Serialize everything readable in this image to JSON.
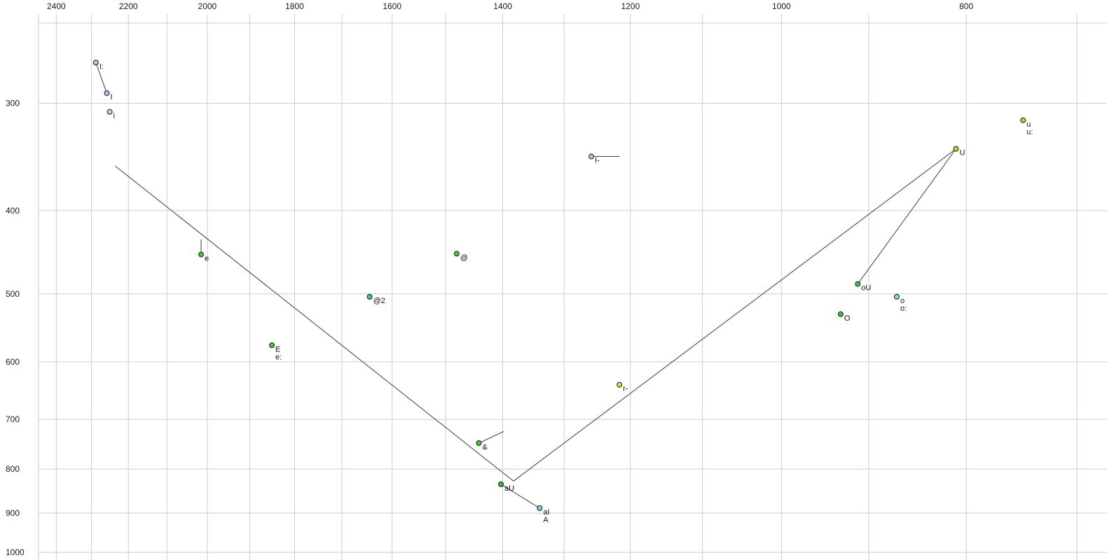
{
  "chart_data": {
    "type": "scatter",
    "title": "",
    "xlabel": "",
    "ylabel": "",
    "description": "Vowel formant plot: F2 (Hz) decreasing left-to-right on top axis, F1 (Hz) increasing top-to-bottom on left axis, both log-scaled, with phonetic-symbol labelled points and connector lines.",
    "x_axis": {
      "scale": "log",
      "reversed": true,
      "domain": [
        2452,
        675
      ],
      "tick_values": [
        2400,
        2200,
        2000,
        1800,
        1600,
        1400,
        1200,
        1000,
        800
      ],
      "tick_labels": [
        "2400",
        "2200",
        "2000",
        "1800",
        "1600",
        "1400",
        "1200",
        "1000",
        "800"
      ],
      "gridline_values": [
        2400,
        2300,
        2200,
        2100,
        2000,
        1900,
        1800,
        1700,
        1600,
        1500,
        1400,
        1300,
        1200,
        1100,
        1000,
        900,
        800,
        700
      ]
    },
    "y_axis": {
      "scale": "log",
      "inverted": true,
      "domain": [
        242,
        1011
      ],
      "tick_values": [
        300,
        400,
        500,
        600,
        700,
        800,
        900,
        1000
      ],
      "tick_labels": [
        "300",
        "400",
        "500",
        "600",
        "700",
        "800",
        "900",
        "1000"
      ],
      "gridline_values": [
        300,
        400,
        500,
        600,
        700,
        800,
        900,
        1000
      ]
    },
    "points": [
      {
        "label": "I:",
        "f2": 2288,
        "f1": 269,
        "color": "#b9bdec"
      },
      {
        "label": "I",
        "f2": 2258,
        "f1": 292,
        "color": "#b9bdec"
      },
      {
        "label": "i",
        "f2": 2250,
        "f1": 307,
        "color": "#a9d6f2"
      },
      {
        "label": "u\nu:",
        "f2": 747,
        "f1": 314,
        "color": "#b6dc1e"
      },
      {
        "label": "U",
        "f2": 810,
        "f1": 339,
        "color": "#c2dc1e"
      },
      {
        "label": "I-",
        "f2": 1258,
        "f1": 346,
        "color": "#b9bdec"
      },
      {
        "label": "e",
        "f2": 2015,
        "f1": 450,
        "color": "#47c634"
      },
      {
        "label": "@",
        "f2": 1480,
        "f1": 449,
        "color": "#47c634"
      },
      {
        "label": "@2",
        "f2": 1644,
        "f1": 504,
        "color": "#3ec98e"
      },
      {
        "label": "E\ne:",
        "f2": 1850,
        "f1": 574,
        "color": "#47c634"
      },
      {
        "label": "r-",
        "f2": 1216,
        "f1": 638,
        "color": "#e3da25"
      },
      {
        "label": "&",
        "f2": 1441,
        "f1": 746,
        "color": "#47c634"
      },
      {
        "label": "aU",
        "f2": 1403,
        "f1": 833,
        "color": "#35b935"
      },
      {
        "label": "aI\nA",
        "f2": 1339,
        "f1": 888,
        "color": "#72d2e2"
      },
      {
        "label": "oU",
        "f2": 912,
        "f1": 487,
        "color": "#38c247"
      },
      {
        "label": "o\no:",
        "f2": 870,
        "f1": 504,
        "color": "#84dada"
      },
      {
        "label": "O",
        "f2": 931,
        "f1": 528,
        "color": "#38c247"
      }
    ],
    "segments": [
      {
        "from": {
          "f2": 2235,
          "f1": 355
        },
        "to": {
          "f2": 1382,
          "f1": 826
        }
      },
      {
        "from": {
          "f2": 1382,
          "f1": 826
        },
        "to": {
          "f2": 810,
          "f1": 339
        }
      },
      {
        "from": {
          "f2": 810,
          "f1": 339
        },
        "to": {
          "f2": 912,
          "f1": 487
        }
      },
      {
        "from": {
          "f2": 1403,
          "f1": 833
        },
        "to": {
          "f2": 1339,
          "f1": 888
        }
      },
      {
        "from": {
          "f2": 2288,
          "f1": 269
        },
        "to": {
          "f2": 2258,
          "f1": 292
        }
      },
      {
        "from": {
          "f2": 2015,
          "f1": 432
        },
        "to": {
          "f2": 2015,
          "f1": 450
        }
      },
      {
        "from": {
          "f2": 1441,
          "f1": 746
        },
        "to": {
          "f2": 1398,
          "f1": 723
        }
      },
      {
        "from": {
          "f2": 1258,
          "f1": 346
        },
        "to": {
          "f2": 1216,
          "f1": 346
        }
      }
    ],
    "style": {
      "background": "#ffffff",
      "grid_color": "#cdcdcd",
      "segment_color": "#3a3a3a",
      "point_stroke": "#1c1c1c",
      "tick_label_color": "#1a1a1a",
      "point_label_color": "#111111"
    }
  }
}
